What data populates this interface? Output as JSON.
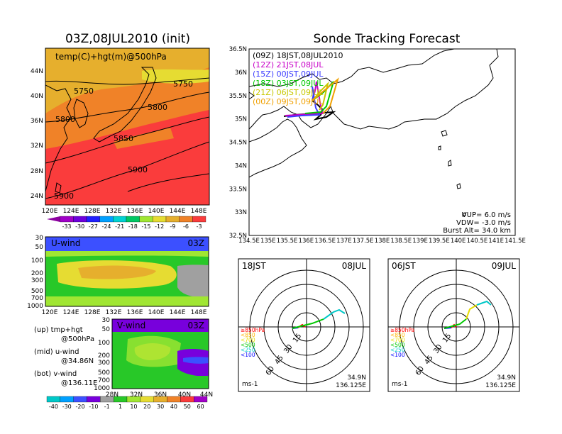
{
  "left_title": "03Z,08JUL2010 (init)",
  "right_title": "Sonde Tracking Forecast",
  "temp_map": {
    "panel_label": "temp(C)+hgt(m)@500hPa",
    "lat_ticks": [
      "44N",
      "40N",
      "36N",
      "32N",
      "28N",
      "24N"
    ],
    "lon_ticks": [
      "120E",
      "124E",
      "128E",
      "132E",
      "136E",
      "140E",
      "144E",
      "148E"
    ],
    "contour_labels": [
      "5750",
      "5750",
      "5800",
      "5800",
      "5850",
      "5900",
      "5900"
    ],
    "colorbar_ticks": [
      "-33",
      "-30",
      "-27",
      "-24",
      "-21",
      "-18",
      "-15",
      "-12",
      "-9",
      "-6",
      "-3"
    ],
    "colorbar_colors": [
      "#a000c8",
      "#6e00dc",
      "#2020ff",
      "#00a0ff",
      "#00d2d2",
      "#00c864",
      "#a0e632",
      "#e6dc32",
      "#e6af2d",
      "#f08228",
      "#fa3c3c"
    ]
  },
  "uwind": {
    "panel_label": "U-wind",
    "time": "03Z",
    "p_ticks": [
      "30",
      "50",
      "100",
      "200",
      "300",
      "500",
      "700",
      "1000"
    ],
    "lon_ticks": [
      "120E",
      "124E",
      "128E",
      "132E",
      "136E",
      "140E",
      "144E",
      "148E"
    ]
  },
  "vwind": {
    "panel_label": "V-wind",
    "time": "03Z",
    "p_ticks": [
      "30",
      "50",
      "100",
      "200",
      "300",
      "500",
      "700",
      "1000"
    ],
    "lat_ticks": [
      "28N",
      "32N",
      "36N",
      "40N",
      "44N"
    ]
  },
  "legend_notes": [
    {
      "a": "(up) tmp+hgt",
      "b": "@500hPa"
    },
    {
      "a": "(mid) u-wind",
      "b": "@34.86N"
    },
    {
      "a": "(bot) v-wind",
      "b": "@136.11E"
    }
  ],
  "wind_colorbar": {
    "ticks": [
      "-40",
      "-30",
      "-20",
      "-10",
      "-1",
      "1",
      "10",
      "20",
      "30",
      "40",
      "50",
      "60"
    ],
    "colors": [
      "#00c8c8",
      "#00a0ff",
      "#3c50ff",
      "#7800dc",
      "#a0a0a0",
      "#28c828",
      "#a0e632",
      "#e6dc32",
      "#e6af2d",
      "#f08228",
      "#fa3c3c",
      "#a000c8"
    ]
  },
  "track_map": {
    "lat_ticks": [
      "36.5N",
      "36N",
      "35.5N",
      "35N",
      "34.5N",
      "34N",
      "33.5N",
      "33N",
      "32.5N"
    ],
    "lon_ticks": [
      "134.5E",
      "135E",
      "135.5E",
      "136E",
      "136.5E",
      "137E",
      "137.5E",
      "138E",
      "138.5E",
      "139E",
      "139.5E",
      "140E",
      "140.5E",
      "141E",
      "141.5E"
    ],
    "legend": [
      {
        "label": "(09Z)  18JST,08JUL2010",
        "color": "#000000"
      },
      {
        "label": "(12Z)  21JST,08JUL",
        "color": "#c800c8"
      },
      {
        "label": "(15Z)  00JST,09JUL",
        "color": "#3c3cff"
      },
      {
        "label": "(18Z)  03JST,09JUL",
        "color": "#00c800"
      },
      {
        "label": "(21Z)  06JST,09JUL",
        "color": "#c8c800"
      },
      {
        "label": "(00Z)  09JST,09JUL",
        "color": "#f0a000"
      }
    ],
    "params": [
      "VUP=  6.0  m/s",
      "VDW= -3.0  m/s",
      "Burst Alt=  34.0  km"
    ]
  },
  "hodo_left": {
    "time": "18JST",
    "date": "08JUL",
    "ring_labels": [
      "15",
      "30",
      "45",
      "60"
    ],
    "unit": "ms-1",
    "lat": "34.9N",
    "lon": "136.125E"
  },
  "hodo_right": {
    "time": "06JST",
    "date": "09JUL",
    "ring_labels": [
      "15",
      "30",
      "45",
      "60"
    ],
    "unit": "ms-1",
    "lat": "34.9N",
    "lon": "136.125E"
  },
  "hodo_levels": [
    {
      "label": "≥850hPa",
      "color": "#ff0000"
    },
    {
      "label": "<850",
      "color": "#ffb400"
    },
    {
      "label": "<700",
      "color": "#e6dc00"
    },
    {
      "label": "<500",
      "color": "#00c800"
    },
    {
      "label": "<250",
      "color": "#00c8c8"
    },
    {
      "label": "<100",
      "color": "#0000ff"
    }
  ],
  "chart_data": {
    "type": "heatmap",
    "title": "Sonde Tracking Forecast",
    "track_launch_site": {
      "lat": 34.9,
      "lon": 136.125
    },
    "ascent_speed_ms": 6.0,
    "descent_speed_ms": -3.0,
    "burst_altitude_km": 34.0,
    "track_map_xlim": [
      134.5,
      141.5
    ],
    "track_map_ylim": [
      32.5,
      36.5
    ],
    "temp_map_xlim": [
      120,
      150
    ],
    "temp_map_ylim": [
      22,
      47
    ],
    "hgt_contours_m": [
      5750,
      5800,
      5850,
      5900
    ]
  }
}
